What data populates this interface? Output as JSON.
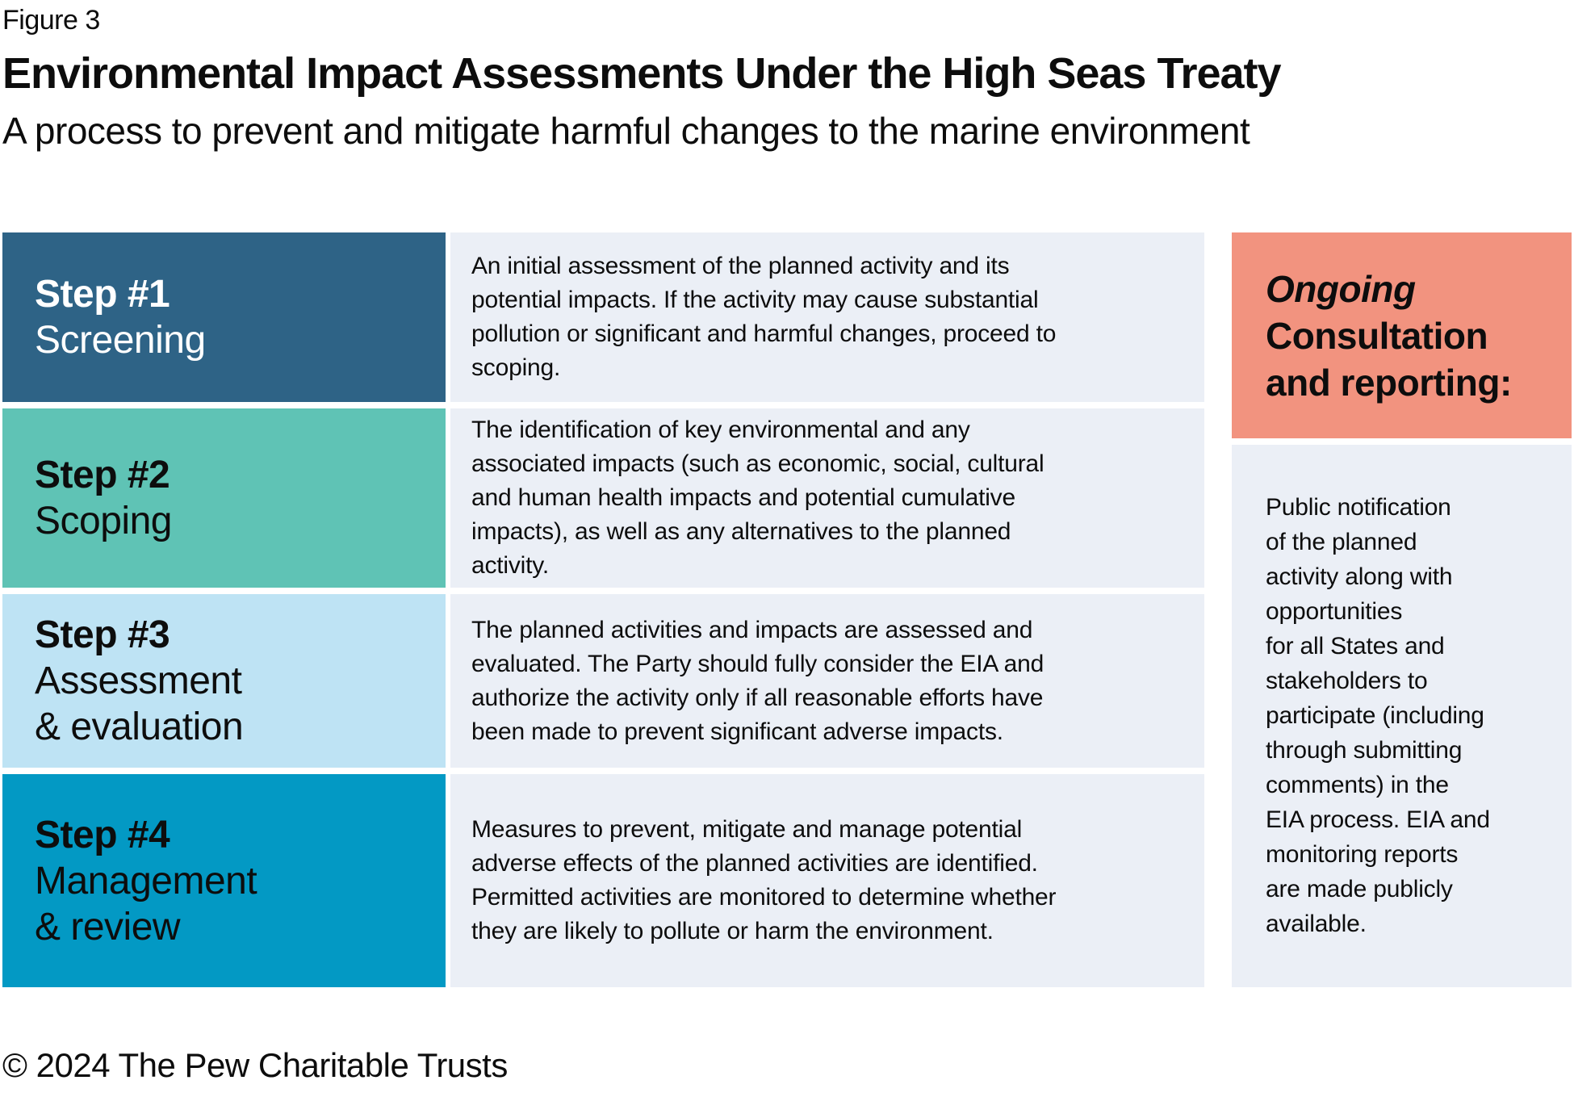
{
  "figure_label": "Figure 3",
  "title": "Environmental Impact Assessments Under the High Seas Treaty",
  "subtitle": "A process to prevent and mitigate harmful changes to the marine environment",
  "steps": [
    {
      "label": "Step #1",
      "name": "Screening",
      "description": "An initial assessment of the planned activity and its\npotential impacts. If the activity may cause substantial\npollution or significant and harmful changes, proceed to\nscoping.",
      "box_color": "#2e6386",
      "label_color": "#ffffff"
    },
    {
      "label": "Step #2",
      "name": "Scoping",
      "description": "The identification of key environmental and any\nassociated impacts (such as economic, social, cultural\nand human health impacts and potential cumulative\nimpacts), as well as any alternatives to the planned\nactivity.",
      "box_color": "#5fc3b5",
      "label_color": "#0d0d0d"
    },
    {
      "label": "Step #3",
      "name": "Assessment\n& evaluation",
      "description": "The planned activities and impacts are assessed and\nevaluated. The Party should fully consider the EIA and\nauthorize the activity only if all reasonable efforts have\nbeen made to prevent significant adverse impacts.",
      "box_color": "#bee3f4",
      "label_color": "#0d0d0d"
    },
    {
      "label": "Step #4",
      "name": "Management\n& review",
      "description": "Measures to prevent, mitigate and manage potential\nadverse effects of the planned activities are identified.\nPermitted activities are monitored to determine whether\nthey are likely to pollute or harm the environment.",
      "box_color": "#0399c4",
      "label_color": "#0d0d0d"
    }
  ],
  "sidebar": {
    "header_emphasis": "Ongoing",
    "header_rest": "Consultation\nand reporting:",
    "header_color": "#f2937f",
    "body": "Public notification\nof the planned\nactivity along with\nopportunities\nfor all States and\nstakeholders to\nparticipate (including\nthrough submitting\ncomments) in the\nEIA process. EIA and\nmonitoring reports\nare made publicly\navailable."
  },
  "footer": "© 2024 The Pew Charitable Trusts",
  "colors": {
    "page_bg": "#ffffff",
    "panel_bg": "#ebeff6",
    "text": "#0d0d0d"
  }
}
